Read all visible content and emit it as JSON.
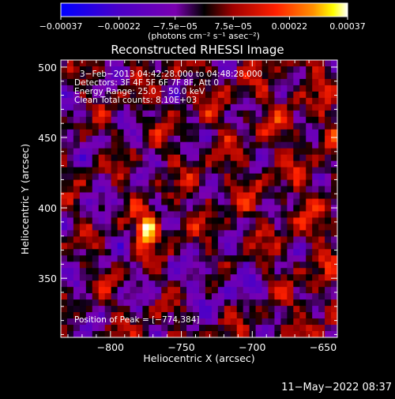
{
  "chart_data": {
    "type": "heatmap",
    "title": "Reconstructed RHESSI Image",
    "xlabel": "Heliocentric X (arcsec)",
    "ylabel": "Heliocentric Y (arcsec)",
    "xlim": [
      -835,
      -640
    ],
    "ylim": [
      308,
      505
    ],
    "xticks": [
      {
        "value": -800,
        "label": "−800"
      },
      {
        "value": -750,
        "label": "−750"
      },
      {
        "value": -700,
        "label": "−700"
      },
      {
        "value": -650,
        "label": "−650"
      }
    ],
    "yticks": [
      {
        "value": 350,
        "label": "350"
      },
      {
        "value": 400,
        "label": "400"
      },
      {
        "value": 450,
        "label": "450"
      },
      {
        "value": 500,
        "label": "500"
      }
    ],
    "colorbar": {
      "range": [
        -0.00037,
        0.00037
      ],
      "ticks": [
        {
          "value": -0.00037,
          "label": "−0.00037"
        },
        {
          "value": -0.00022,
          "label": "−0.00022"
        },
        {
          "value": -7.5e-05,
          "label": "−7.5e−05"
        },
        {
          "value": 7.5e-05,
          "label": "7.5e−05"
        },
        {
          "value": 0.00022,
          "label": "0.00022"
        },
        {
          "value": 0.00037,
          "label": "0.00037"
        }
      ],
      "unit_label": "(photons cm⁻² s⁻¹ asec⁻²)"
    },
    "annotations": [
      "3−Feb−2013 04:42:28.000 to 04:48:28.000",
      "Detectors: 3F 4F 5F 6F 7F 8F, Att 0",
      "Energy Range: 25.0 − 50.0 keV",
      "Clean     Total counts: 8.10E+03"
    ],
    "peak_label": "Position of Peak = [−774,384]",
    "peak": {
      "x": -774,
      "y": 384
    },
    "grid": false,
    "colormap": [
      "#0000ff",
      "#4a00c8",
      "#7a00b0",
      "#000000",
      "#a00000",
      "#ff2000",
      "#ff9000",
      "#ffff00",
      "#ffffff"
    ]
  },
  "footer_timestamp": "11−May−2022 08:37"
}
